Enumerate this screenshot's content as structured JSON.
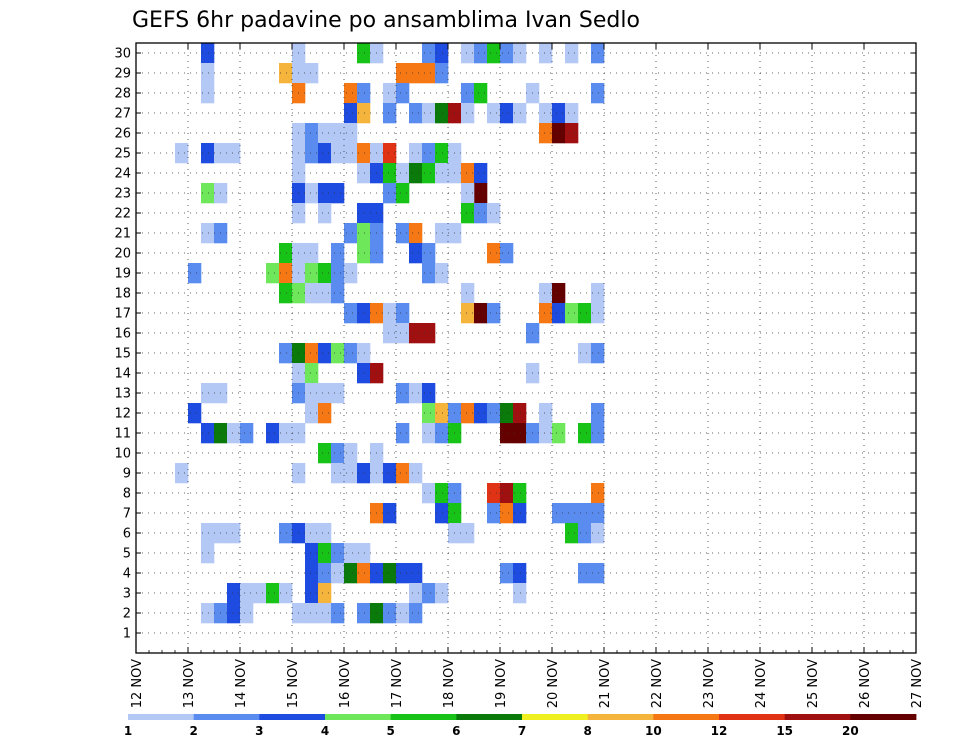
{
  "chart_data": {
    "type": "heatmap",
    "title": "GEFS 6hr padavine po ansamblima Ivan Sedlo",
    "xlabel": "",
    "ylabel": "",
    "x_tick_labels": [
      "12 NOV",
      "13 NOV",
      "14 NOV",
      "15 NOV",
      "16 NOV",
      "17 NOV",
      "18 NOV",
      "19 NOV",
      "20 NOV",
      "21 NOV",
      "22 NOV",
      "23 NOV",
      "24 NOV",
      "25 NOV",
      "26 NOV",
      "27 NOV"
    ],
    "y_tick_labels": [
      "1",
      "2",
      "3",
      "4",
      "5",
      "6",
      "7",
      "8",
      "9",
      "10",
      "11",
      "12",
      "13",
      "14",
      "15",
      "16",
      "17",
      "18",
      "19",
      "20",
      "21",
      "22",
      "23",
      "24",
      "25",
      "26",
      "27",
      "28",
      "29",
      "30"
    ],
    "x_step": "6hr",
    "ylim": [
      0,
      30
    ],
    "grid": true,
    "colorbar": {
      "ticks": [
        "1",
        "2",
        "3",
        "4",
        "5",
        "6",
        "7",
        "8",
        "10",
        "12",
        "15",
        "20"
      ],
      "colors": [
        "#b4c8f5",
        "#5a8cf0",
        "#1e4be0",
        "#6ee85a",
        "#18c318",
        "#0a7a0a",
        "#f0f020",
        "#f5b43c",
        "#f57814",
        "#e03214",
        "#a01010",
        "#640000"
      ]
    },
    "cells_format": "[time_step_from_12_NOV_00z, ensemble_member, precipitation]",
    "cells": [
      [
        5,
        30,
        3
      ],
      [
        12,
        30,
        1
      ],
      [
        17,
        30,
        5
      ],
      [
        18,
        30,
        1
      ],
      [
        22,
        30,
        2
      ],
      [
        23,
        30,
        3
      ],
      [
        25,
        30,
        1
      ],
      [
        26,
        30,
        2
      ],
      [
        27,
        30,
        5
      ],
      [
        28,
        30,
        2
      ],
      [
        29,
        30,
        1
      ],
      [
        31,
        30,
        1
      ],
      [
        33,
        30,
        1
      ],
      [
        35,
        30,
        2
      ],
      [
        5,
        29,
        1
      ],
      [
        11,
        29,
        8
      ],
      [
        12,
        29,
        1
      ],
      [
        13,
        29,
        1
      ],
      [
        20,
        29,
        10
      ],
      [
        21,
        29,
        10
      ],
      [
        22,
        29,
        10
      ],
      [
        23,
        29,
        2
      ],
      [
        5,
        28,
        1
      ],
      [
        12,
        28,
        10
      ],
      [
        16,
        28,
        10
      ],
      [
        17,
        28,
        2
      ],
      [
        19,
        28,
        1
      ],
      [
        20,
        28,
        2
      ],
      [
        25,
        28,
        1
      ],
      [
        25,
        28,
        2
      ],
      [
        26,
        28,
        5
      ],
      [
        30,
        28,
        1
      ],
      [
        35,
        28,
        2
      ],
      [
        16,
        27,
        3
      ],
      [
        17,
        27,
        8
      ],
      [
        19,
        27,
        2
      ],
      [
        21,
        27,
        2
      ],
      [
        22,
        27,
        1
      ],
      [
        23,
        27,
        6
      ],
      [
        24,
        27,
        15
      ],
      [
        25,
        27,
        1
      ],
      [
        27,
        27,
        1
      ],
      [
        28,
        27,
        3
      ],
      [
        29,
        27,
        1
      ],
      [
        31,
        27,
        1
      ],
      [
        32,
        27,
        3
      ],
      [
        33,
        27,
        1
      ],
      [
        12,
        26,
        1
      ],
      [
        13,
        26,
        2
      ],
      [
        14,
        26,
        1
      ],
      [
        15,
        26,
        1
      ],
      [
        16,
        26,
        1
      ],
      [
        31,
        26,
        10
      ],
      [
        32,
        26,
        20
      ],
      [
        33,
        26,
        15
      ],
      [
        3,
        25,
        1
      ],
      [
        5,
        25,
        3
      ],
      [
        6,
        25,
        1
      ],
      [
        7,
        25,
        1
      ],
      [
        12,
        25,
        1
      ],
      [
        13,
        25,
        2
      ],
      [
        14,
        25,
        3
      ],
      [
        15,
        25,
        1
      ],
      [
        16,
        25,
        1
      ],
      [
        17,
        25,
        10
      ],
      [
        18,
        25,
        1
      ],
      [
        19,
        25,
        12
      ],
      [
        21,
        25,
        1
      ],
      [
        22,
        25,
        2
      ],
      [
        23,
        25,
        5
      ],
      [
        24,
        25,
        1
      ],
      [
        12,
        24,
        1
      ],
      [
        17,
        24,
        1
      ],
      [
        18,
        24,
        3
      ],
      [
        19,
        24,
        5
      ],
      [
        20,
        24,
        1
      ],
      [
        21,
        24,
        6
      ],
      [
        22,
        24,
        5
      ],
      [
        23,
        24,
        1
      ],
      [
        24,
        24,
        1
      ],
      [
        25,
        24,
        10
      ],
      [
        26,
        24,
        3
      ],
      [
        5,
        23,
        4
      ],
      [
        6,
        23,
        1
      ],
      [
        12,
        23,
        3
      ],
      [
        13,
        23,
        1
      ],
      [
        14,
        23,
        3
      ],
      [
        15,
        23,
        3
      ],
      [
        19,
        23,
        2
      ],
      [
        20,
        23,
        5
      ],
      [
        26,
        23,
        20
      ],
      [
        25,
        23,
        1
      ],
      [
        12,
        22,
        1
      ],
      [
        14,
        22,
        1
      ],
      [
        17,
        22,
        3
      ],
      [
        18,
        22,
        3
      ],
      [
        25,
        22,
        5
      ],
      [
        26,
        22,
        2
      ],
      [
        27,
        22,
        1
      ],
      [
        5,
        21,
        1
      ],
      [
        6,
        21,
        2
      ],
      [
        16,
        21,
        2
      ],
      [
        17,
        21,
        4
      ],
      [
        18,
        21,
        2
      ],
      [
        20,
        21,
        2
      ],
      [
        21,
        21,
        10
      ],
      [
        23,
        21,
        1
      ],
      [
        24,
        21,
        1
      ],
      [
        11,
        20,
        5
      ],
      [
        12,
        20,
        1
      ],
      [
        13,
        20,
        1
      ],
      [
        15,
        20,
        2
      ],
      [
        17,
        20,
        4
      ],
      [
        18,
        20,
        2
      ],
      [
        21,
        20,
        3
      ],
      [
        22,
        20,
        2
      ],
      [
        27,
        20,
        10
      ],
      [
        28,
        20,
        2
      ],
      [
        4,
        19,
        2
      ],
      [
        10,
        19,
        4
      ],
      [
        11,
        19,
        10
      ],
      [
        12,
        19,
        1
      ],
      [
        13,
        19,
        4
      ],
      [
        14,
        19,
        5
      ],
      [
        15,
        19,
        2
      ],
      [
        16,
        19,
        1
      ],
      [
        22,
        19,
        2
      ],
      [
        23,
        19,
        1
      ],
      [
        11,
        18,
        5
      ],
      [
        12,
        18,
        4
      ],
      [
        13,
        18,
        1
      ],
      [
        14,
        18,
        1
      ],
      [
        15,
        18,
        2
      ],
      [
        25,
        18,
        1
      ],
      [
        31,
        18,
        1
      ],
      [
        32,
        18,
        20
      ],
      [
        35,
        18,
        1
      ],
      [
        16,
        17,
        2
      ],
      [
        17,
        17,
        3
      ],
      [
        18,
        17,
        10
      ],
      [
        19,
        17,
        1
      ],
      [
        20,
        17,
        2
      ],
      [
        25,
        17,
        8
      ],
      [
        26,
        17,
        20
      ],
      [
        27,
        17,
        2
      ],
      [
        31,
        17,
        10
      ],
      [
        32,
        17,
        3
      ],
      [
        33,
        17,
        4
      ],
      [
        34,
        17,
        5
      ],
      [
        35,
        17,
        1
      ],
      [
        19,
        16,
        1
      ],
      [
        20,
        16,
        1
      ],
      [
        21,
        16,
        15
      ],
      [
        22,
        16,
        15
      ],
      [
        30,
        16,
        2
      ],
      [
        11,
        15,
        2
      ],
      [
        12,
        15,
        6
      ],
      [
        13,
        15,
        10
      ],
      [
        14,
        15,
        3
      ],
      [
        15,
        15,
        4
      ],
      [
        16,
        15,
        2
      ],
      [
        17,
        15,
        1
      ],
      [
        34,
        15,
        1
      ],
      [
        35,
        15,
        2
      ],
      [
        12,
        14,
        1
      ],
      [
        13,
        14,
        4
      ],
      [
        17,
        14,
        3
      ],
      [
        18,
        14,
        15
      ],
      [
        30,
        14,
        1
      ],
      [
        5,
        13,
        1
      ],
      [
        6,
        13,
        1
      ],
      [
        12,
        13,
        2
      ],
      [
        13,
        13,
        1
      ],
      [
        14,
        13,
        1
      ],
      [
        15,
        13,
        1
      ],
      [
        20,
        13,
        2
      ],
      [
        21,
        13,
        1
      ],
      [
        22,
        13,
        3
      ],
      [
        4,
        12,
        3
      ],
      [
        13,
        12,
        1
      ],
      [
        14,
        12,
        10
      ],
      [
        22,
        12,
        4
      ],
      [
        23,
        12,
        8
      ],
      [
        24,
        12,
        2
      ],
      [
        25,
        12,
        10
      ],
      [
        26,
        12,
        3
      ],
      [
        27,
        12,
        2
      ],
      [
        28,
        12,
        6
      ],
      [
        29,
        12,
        15
      ],
      [
        31,
        12,
        1
      ],
      [
        35,
        12,
        2
      ],
      [
        5,
        11,
        3
      ],
      [
        6,
        11,
        6
      ],
      [
        7,
        11,
        1
      ],
      [
        8,
        11,
        2
      ],
      [
        10,
        11,
        3
      ],
      [
        11,
        11,
        1
      ],
      [
        12,
        11,
        1
      ],
      [
        20,
        11,
        2
      ],
      [
        22,
        11,
        1
      ],
      [
        23,
        11,
        2
      ],
      [
        24,
        11,
        5
      ],
      [
        28,
        11,
        20
      ],
      [
        29,
        11,
        20
      ],
      [
        30,
        11,
        2
      ],
      [
        31,
        11,
        1
      ],
      [
        32,
        11,
        4
      ],
      [
        34,
        11,
        5
      ],
      [
        35,
        11,
        2
      ],
      [
        14,
        10,
        5
      ],
      [
        15,
        10,
        2
      ],
      [
        16,
        10,
        1
      ],
      [
        18,
        10,
        1
      ],
      [
        3,
        9,
        1
      ],
      [
        12,
        9,
        1
      ],
      [
        15,
        9,
        1
      ],
      [
        16,
        9,
        1
      ],
      [
        17,
        9,
        3
      ],
      [
        18,
        9,
        1
      ],
      [
        19,
        9,
        3
      ],
      [
        20,
        9,
        10
      ],
      [
        21,
        9,
        1
      ],
      [
        22,
        8,
        1
      ],
      [
        23,
        8,
        5
      ],
      [
        24,
        8,
        2
      ],
      [
        27,
        8,
        12
      ],
      [
        28,
        8,
        15
      ],
      [
        29,
        8,
        5
      ],
      [
        35,
        8,
        10
      ],
      [
        18,
        7,
        10
      ],
      [
        19,
        7,
        3
      ],
      [
        23,
        7,
        3
      ],
      [
        24,
        7,
        5
      ],
      [
        27,
        7,
        2
      ],
      [
        28,
        7,
        10
      ],
      [
        29,
        7,
        3
      ],
      [
        32,
        7,
        2
      ],
      [
        33,
        7,
        2
      ],
      [
        34,
        7,
        2
      ],
      [
        35,
        7,
        2
      ],
      [
        5,
        6,
        1
      ],
      [
        6,
        6,
        1
      ],
      [
        7,
        6,
        1
      ],
      [
        11,
        6,
        2
      ],
      [
        12,
        6,
        3
      ],
      [
        13,
        6,
        1
      ],
      [
        14,
        6,
        1
      ],
      [
        24,
        6,
        1
      ],
      [
        25,
        6,
        1
      ],
      [
        33,
        6,
        5
      ],
      [
        34,
        6,
        2
      ],
      [
        35,
        6,
        1
      ],
      [
        5,
        5,
        1
      ],
      [
        13,
        5,
        3
      ],
      [
        14,
        5,
        5
      ],
      [
        15,
        5,
        2
      ],
      [
        16,
        5,
        1
      ],
      [
        17,
        5,
        1
      ],
      [
        13,
        4,
        3
      ],
      [
        14,
        4,
        2
      ],
      [
        15,
        4,
        1
      ],
      [
        16,
        4,
        6
      ],
      [
        17,
        4,
        10
      ],
      [
        18,
        4,
        3
      ],
      [
        19,
        4,
        6
      ],
      [
        20,
        4,
        3
      ],
      [
        21,
        4,
        3
      ],
      [
        28,
        4,
        2
      ],
      [
        29,
        4,
        3
      ],
      [
        34,
        4,
        2
      ],
      [
        35,
        4,
        2
      ],
      [
        7,
        3,
        3
      ],
      [
        8,
        3,
        1
      ],
      [
        9,
        3,
        1
      ],
      [
        10,
        3,
        5
      ],
      [
        11,
        3,
        1
      ],
      [
        13,
        3,
        3
      ],
      [
        14,
        3,
        8
      ],
      [
        21,
        3,
        1
      ],
      [
        22,
        3,
        2
      ],
      [
        23,
        3,
        1
      ],
      [
        29,
        3,
        1
      ],
      [
        5,
        2,
        1
      ],
      [
        6,
        2,
        2
      ],
      [
        7,
        2,
        3
      ],
      [
        8,
        2,
        1
      ],
      [
        12,
        2,
        1
      ],
      [
        13,
        2,
        1
      ],
      [
        14,
        2,
        1
      ],
      [
        15,
        2,
        2
      ],
      [
        17,
        2,
        2
      ],
      [
        18,
        2,
        6
      ],
      [
        19,
        2,
        2
      ],
      [
        20,
        2,
        1
      ],
      [
        21,
        2,
        2
      ]
    ]
  }
}
